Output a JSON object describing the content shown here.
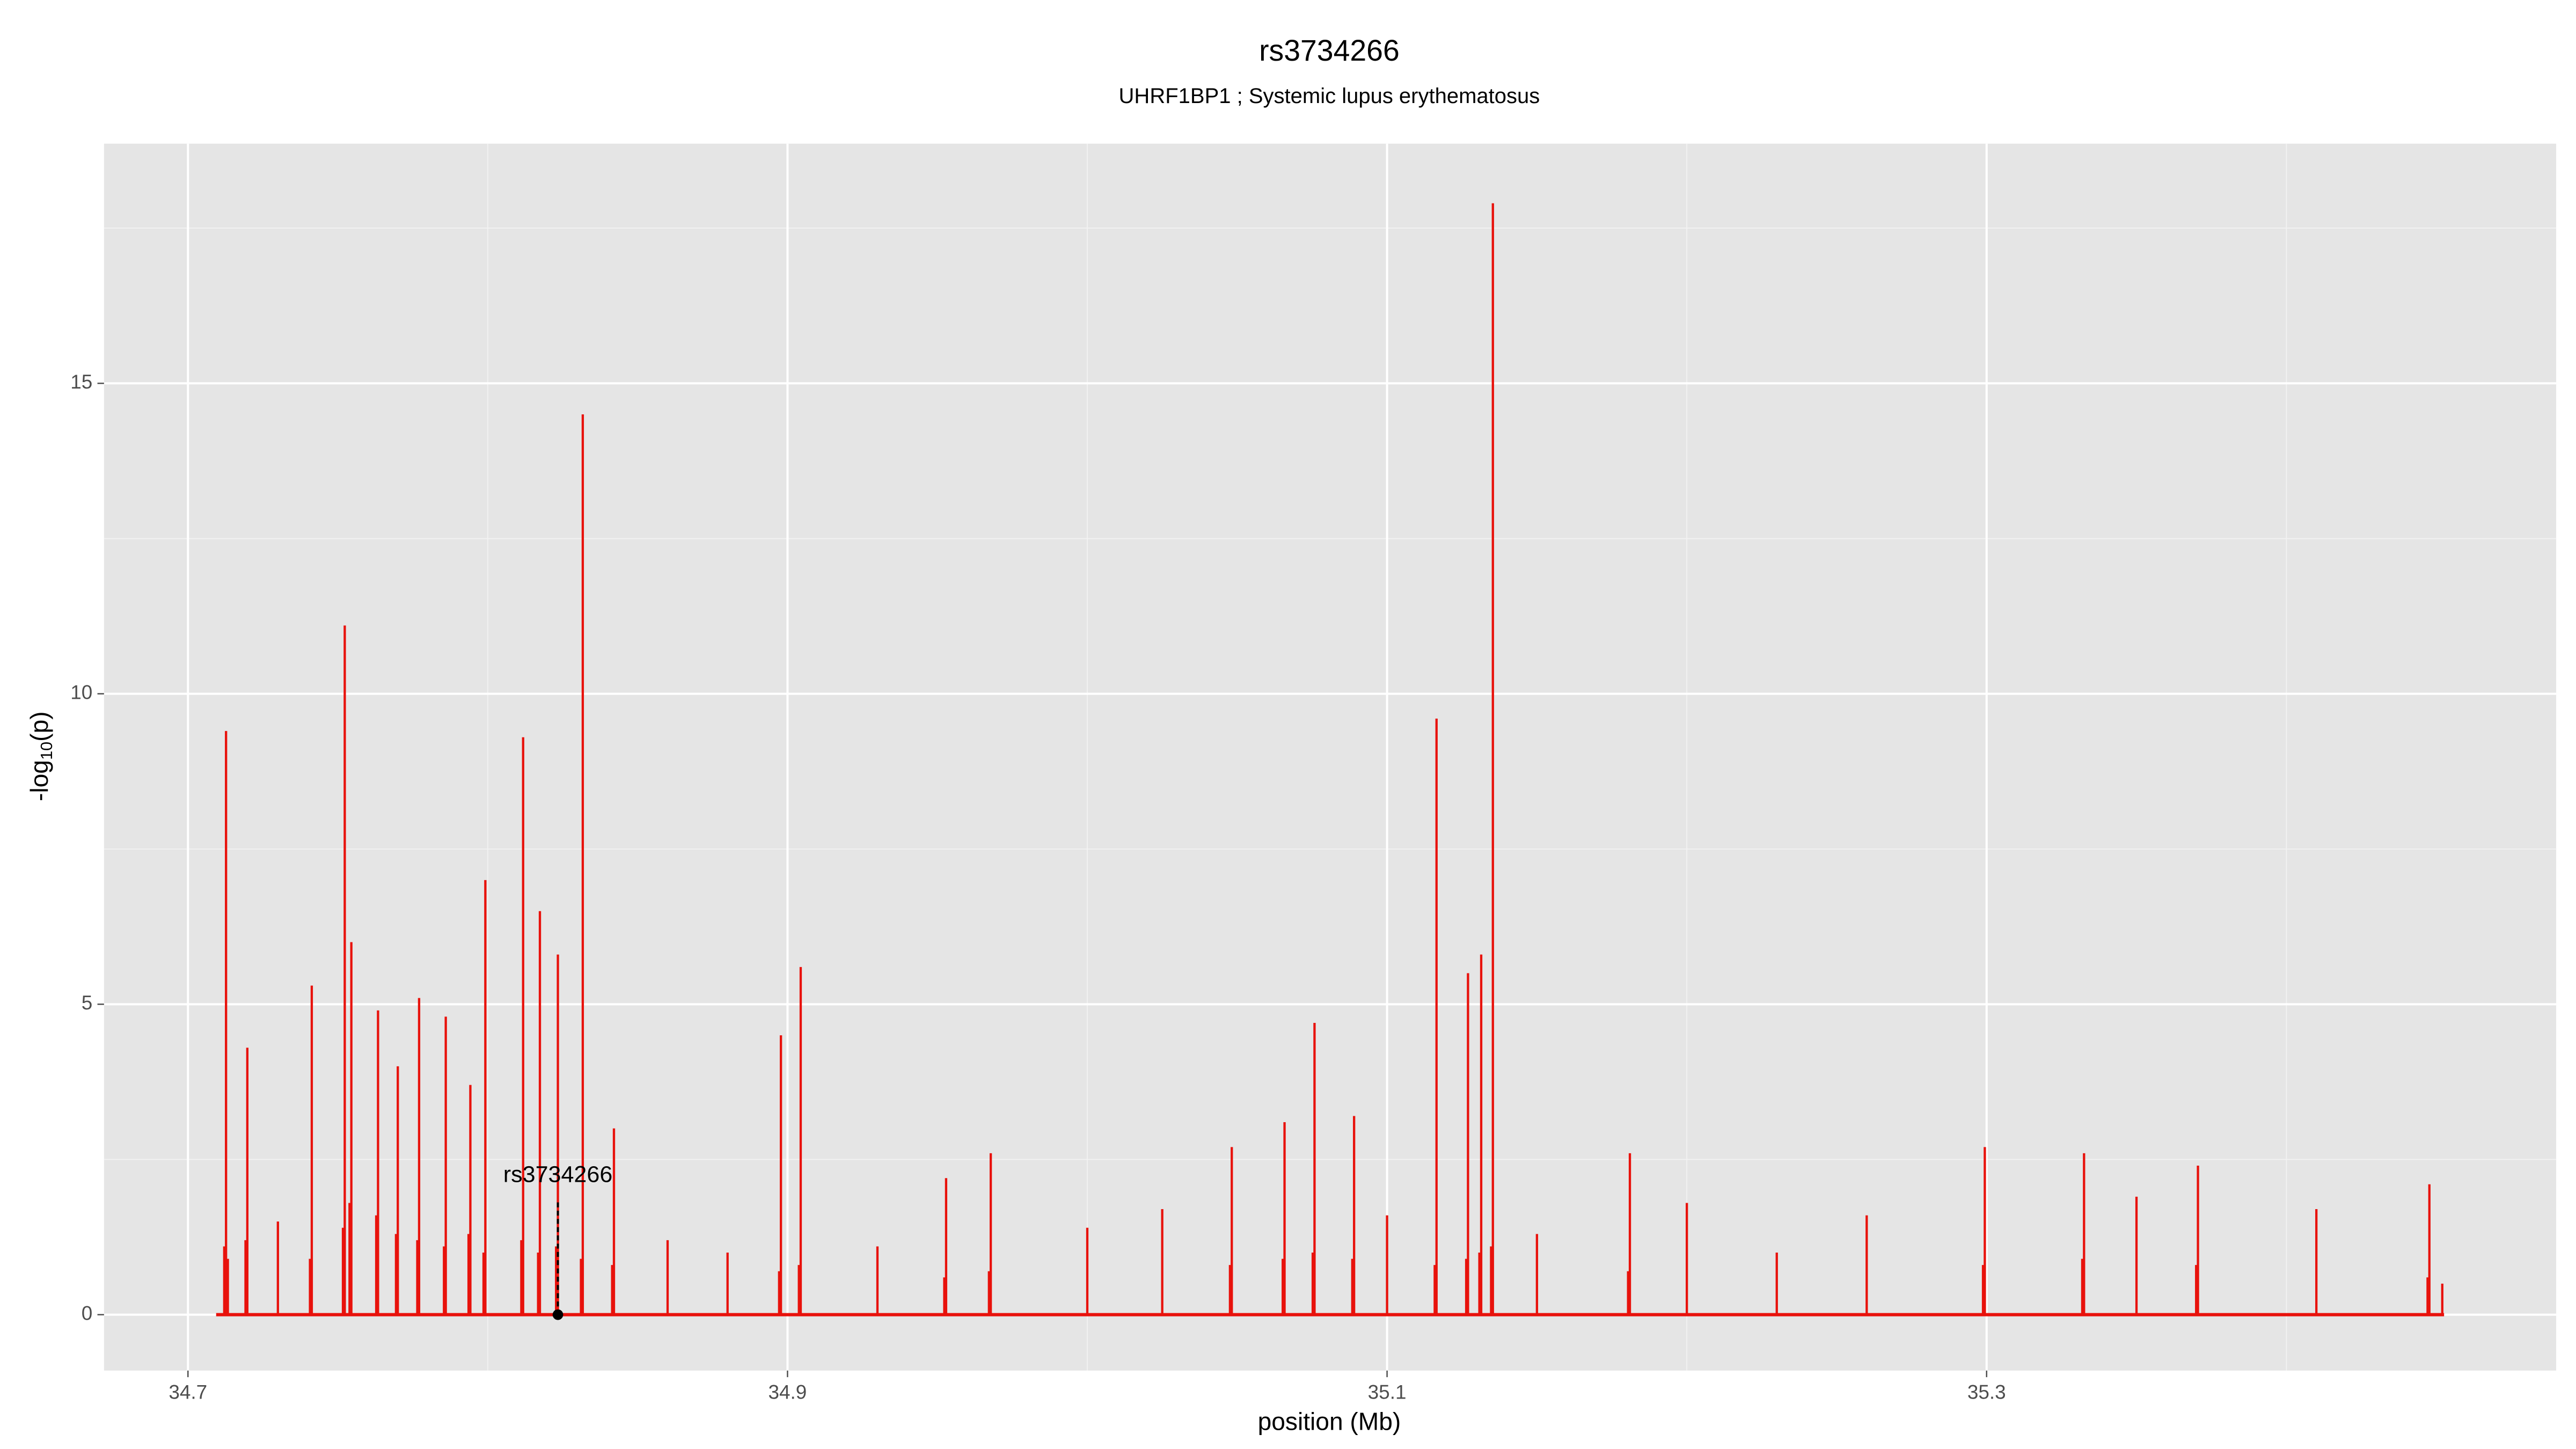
{
  "chart_data": {
    "type": "spike",
    "title": "rs3734266",
    "subtitle": "UHRF1BP1 ; Systemic lupus erythematosus",
    "xlabel": "position (Mb)",
    "ylabel": [
      "-log",
      "10",
      "(p)"
    ],
    "color": "#e8120c",
    "xlim": [
      34.672,
      35.49
    ],
    "ylim": [
      -0.9,
      18.86
    ],
    "xticks": [
      34.7,
      34.9,
      35.1,
      35.3
    ],
    "yticks": [
      0,
      5,
      10,
      15
    ],
    "grid": true,
    "minor_grid": true,
    "annotation": {
      "text": "rs3734266",
      "x": 34.8234,
      "y": 0
    },
    "x": [
      34.7094,
      34.7121,
      34.7127,
      34.7133,
      34.7192,
      34.7198,
      34.73,
      34.7407,
      34.7413,
      34.7517,
      34.7523,
      34.7539,
      34.7545,
      34.7628,
      34.7634,
      34.7694,
      34.77,
      34.7765,
      34.7771,
      34.7854,
      34.786,
      34.7936,
      34.7942,
      34.7986,
      34.7992,
      34.8112,
      34.8118,
      34.8168,
      34.8174,
      34.8228,
      34.8234,
      34.8311,
      34.8317,
      34.8415,
      34.8421,
      34.86,
      34.88,
      34.8972,
      34.8978,
      34.9038,
      34.9044,
      34.93,
      34.9523,
      34.9529,
      34.9672,
      34.9678,
      35.0,
      35.025,
      35.0476,
      35.0482,
      35.0652,
      35.0658,
      35.0752,
      35.0758,
      35.0884,
      35.089,
      35.1,
      35.1159,
      35.1165,
      35.1264,
      35.127,
      35.1308,
      35.1314,
      35.1347,
      35.1353,
      35.15,
      35.1804,
      35.181,
      35.2,
      35.23,
      35.26,
      35.2988,
      35.2994,
      35.3319,
      35.3325,
      35.35,
      35.3699,
      35.3705,
      35.41,
      35.4471,
      35.4477,
      35.452,
      35.4526
    ],
    "values": [
      0,
      1.1,
      9.4,
      0.9,
      1.2,
      4.3,
      1.5,
      0.9,
      5.3,
      1.4,
      11.1,
      1.8,
      6.0,
      1.6,
      4.9,
      1.3,
      4.0,
      1.2,
      5.1,
      1.1,
      4.8,
      1.3,
      3.7,
      1.0,
      7.0,
      1.2,
      9.3,
      1.0,
      6.5,
      1.1,
      5.8,
      0.9,
      14.5,
      0.8,
      3.0,
      1.2,
      1.0,
      0.7,
      4.5,
      0.8,
      5.6,
      1.1,
      0.6,
      2.2,
      0.7,
      2.6,
      1.4,
      1.7,
      0.8,
      2.7,
      0.9,
      3.1,
      1.0,
      4.7,
      0.9,
      3.2,
      1.6,
      0.8,
      9.6,
      0.9,
      5.5,
      1.0,
      5.8,
      1.1,
      17.9,
      1.3,
      0.7,
      2.6,
      1.8,
      1.0,
      1.6,
      0.8,
      2.7,
      0.9,
      2.6,
      1.9,
      0.8,
      2.4,
      1.7,
      0.6,
      2.1,
      0.5,
      0
    ]
  }
}
